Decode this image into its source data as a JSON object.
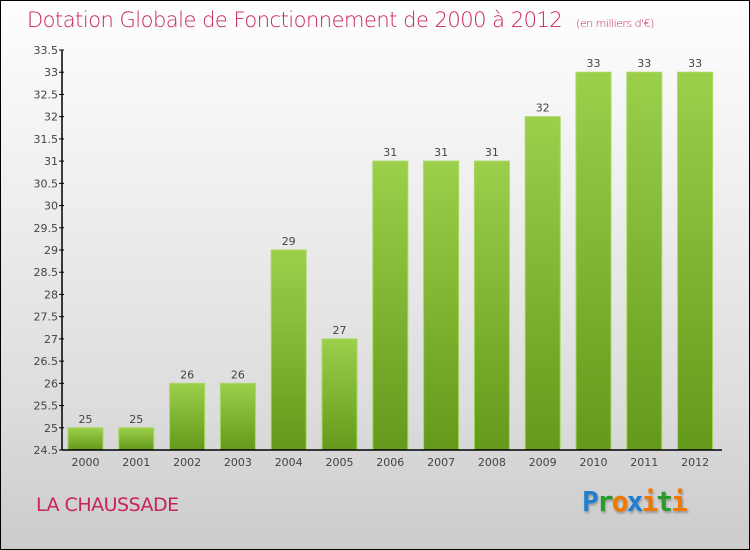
{
  "chart_data": {
    "type": "bar",
    "title": "Dotation Globale de Fonctionnement de 2000 à 2012",
    "unit": "(en milliers d'€)",
    "categories": [
      "2000",
      "2001",
      "2002",
      "2003",
      "2004",
      "2005",
      "2006",
      "2007",
      "2008",
      "2009",
      "2010",
      "2011",
      "2012"
    ],
    "values": [
      25,
      25,
      26,
      26,
      29,
      27,
      31,
      31,
      31,
      32,
      33,
      33,
      33
    ],
    "ylim": [
      24.5,
      33.5
    ],
    "yticks": [
      "24.5",
      "25",
      "25.5",
      "26",
      "26.5",
      "27",
      "27.5",
      "28",
      "28.5",
      "29",
      "29.5",
      "30",
      "30.5",
      "31",
      "31.5",
      "32",
      "32.5",
      "33",
      "33.5"
    ],
    "xlabel": "",
    "ylabel": "",
    "colors": {
      "bar_top": "#9ccf4a",
      "bar_bottom": "#64991a"
    }
  },
  "commune": "LA CHAUSSADE",
  "logo": {
    "text": "Proxiti",
    "letters": [
      [
        "P",
        "#1e7fd0"
      ],
      [
        "r",
        "#2a9a2a"
      ],
      [
        "o",
        "#f07800"
      ],
      [
        "x",
        "#1e7fd0"
      ],
      [
        "i",
        "#f07800"
      ],
      [
        "t",
        "#2a9a2a"
      ],
      [
        "i",
        "#f07800"
      ]
    ]
  }
}
